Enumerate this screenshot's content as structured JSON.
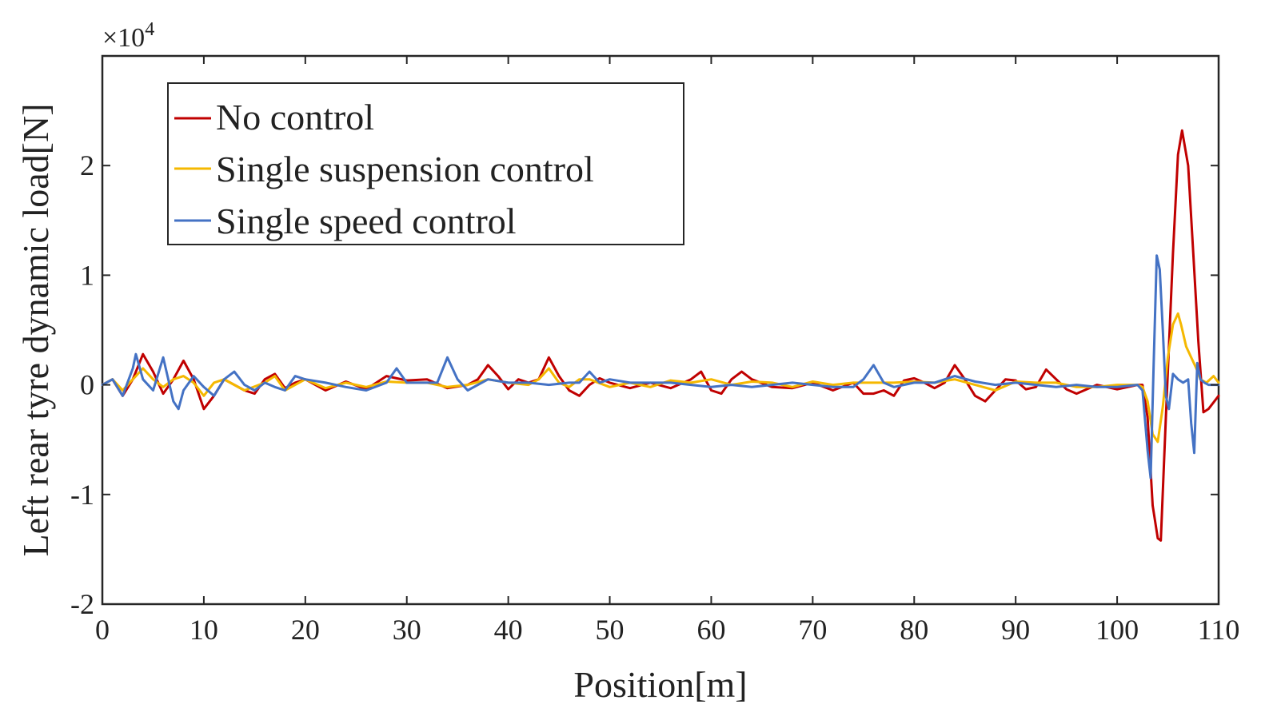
{
  "chart_data": {
    "type": "line",
    "title": "",
    "xlabel": "Position[m]",
    "ylabel": "Left rear tyre dynamic load[N]",
    "y_multiplier_base": "×10",
    "y_multiplier_exp": "4",
    "xlim": [
      0,
      110
    ],
    "ylim": [
      -2,
      3
    ],
    "x_ticks": [
      0,
      10,
      20,
      30,
      40,
      50,
      60,
      70,
      80,
      90,
      100,
      110
    ],
    "x_tick_labels": [
      "0",
      "10",
      "20",
      "30",
      "40",
      "50",
      "60",
      "70",
      "80",
      "90",
      "100",
      "110"
    ],
    "y_ticks": [
      -2,
      -1,
      0,
      1,
      2
    ],
    "y_tick_labels": [
      "-2",
      "-1",
      "0",
      "1",
      "2"
    ],
    "grid": false,
    "legend_position": "top-left",
    "series": [
      {
        "name": "No control",
        "color": "#c00000",
        "x": [
          0,
          1,
          2,
          3,
          4,
          5,
          6,
          7,
          8,
          9,
          10,
          11,
          12,
          13,
          14,
          15,
          16,
          17,
          18,
          19,
          20,
          22,
          24,
          26,
          28,
          30,
          32,
          34,
          36,
          37,
          38,
          39,
          40,
          41,
          42,
          43,
          44,
          45,
          46,
          47,
          48,
          49,
          50,
          52,
          54,
          56,
          58,
          59,
          60,
          61,
          62,
          63,
          64,
          66,
          68,
          70,
          72,
          74,
          75,
          76,
          77,
          78,
          79,
          80,
          81,
          82,
          83,
          84,
          85,
          86,
          87,
          88,
          89,
          90,
          91,
          92,
          93,
          94,
          95,
          96,
          98,
          100,
          102,
          102.5,
          103,
          103.5,
          104,
          104.3,
          104.8,
          105.5,
          106,
          106.4,
          107,
          107.5,
          108,
          108.5,
          109,
          110
        ],
        "y": [
          0,
          0.05,
          -0.1,
          0.05,
          0.28,
          0.12,
          -0.08,
          0.05,
          0.22,
          0.05,
          -0.22,
          -0.1,
          0.05,
          0,
          -0.05,
          -0.08,
          0.05,
          0.1,
          -0.03,
          0.02,
          0.05,
          -0.05,
          0.03,
          -0.04,
          0.08,
          0.04,
          0.05,
          -0.03,
          0,
          0.05,
          0.18,
          0.08,
          -0.04,
          0.05,
          0.02,
          0.05,
          0.25,
          0.08,
          -0.05,
          -0.1,
          0,
          0.06,
          0.02,
          -0.03,
          0.02,
          -0.03,
          0.05,
          0.12,
          -0.05,
          -0.08,
          0.05,
          0.12,
          0.05,
          -0.02,
          -0.03,
          0.02,
          -0.05,
          0.02,
          -0.08,
          -0.08,
          -0.05,
          -0.1,
          0.04,
          0.06,
          0.02,
          -0.03,
          0.02,
          0.18,
          0.05,
          -0.1,
          -0.15,
          -0.05,
          0.05,
          0.04,
          -0.04,
          -0.02,
          0.14,
          0.05,
          -0.04,
          -0.08,
          0,
          -0.04,
          0,
          0,
          -0.3,
          -1.1,
          -1.4,
          -1.42,
          -0.3,
          1.2,
          2.1,
          2.32,
          2.0,
          1.2,
          0.4,
          -0.25,
          -0.22,
          -0.1
        ]
      },
      {
        "name": "Single suspension control",
        "color": "#f5b800",
        "x": [
          0,
          1,
          2,
          3,
          4,
          5,
          6,
          7,
          8,
          9,
          10,
          11,
          12,
          14,
          16,
          17,
          18,
          20,
          22,
          24,
          26,
          28,
          30,
          32,
          34,
          36,
          38,
          40,
          42,
          43,
          44,
          45,
          46,
          47,
          48,
          50,
          52,
          54,
          56,
          58,
          60,
          62,
          64,
          66,
          68,
          70,
          72,
          74,
          76,
          78,
          80,
          82,
          84,
          86,
          88,
          90,
          92,
          94,
          96,
          98,
          100,
          102,
          102.5,
          103,
          103.5,
          104,
          104.5,
          105,
          105.5,
          106,
          106.3,
          106.8,
          107.3,
          107.8,
          108.2,
          108.8,
          109.5,
          110
        ],
        "y": [
          0,
          0.05,
          -0.05,
          0.05,
          0.15,
          0.05,
          -0.02,
          0.05,
          0.08,
          0.02,
          -0.1,
          0.02,
          0.05,
          -0.05,
          0.02,
          0.08,
          -0.05,
          0.05,
          -0.03,
          0.02,
          -0.02,
          0.03,
          0.02,
          0.02,
          -0.02,
          0,
          0.05,
          0.02,
          0,
          0.05,
          0.15,
          0.02,
          -0.02,
          0.05,
          0.05,
          -0.02,
          0.02,
          -0.02,
          0.04,
          0.02,
          0.05,
          0,
          0.03,
          0.02,
          -0.02,
          0.03,
          0,
          0.02,
          0.02,
          0.02,
          0.03,
          0.02,
          0.05,
          0,
          -0.05,
          0.03,
          0.02,
          0.02,
          -0.02,
          -0.02,
          0,
          0,
          -0.02,
          -0.15,
          -0.45,
          -0.52,
          -0.2,
          0.25,
          0.55,
          0.65,
          0.55,
          0.35,
          0.25,
          0.15,
          0.05,
          0.02,
          0.08,
          0.02
        ]
      },
      {
        "name": "Single speed control",
        "color": "#4472c4",
        "x": [
          0,
          1,
          2,
          3,
          3.3,
          4,
          5,
          6,
          7,
          7.5,
          8,
          9,
          10,
          11,
          12,
          13,
          14,
          15,
          16,
          17,
          18,
          19,
          20,
          22,
          24,
          26,
          28,
          29,
          30,
          32,
          33,
          34,
          35,
          36,
          38,
          40,
          42,
          44,
          46,
          47,
          48,
          49,
          50,
          52,
          54,
          56,
          58,
          60,
          62,
          64,
          66,
          68,
          70,
          72,
          74,
          75,
          76,
          77,
          78,
          80,
          82,
          84,
          86,
          88,
          90,
          92,
          94,
          96,
          98,
          100,
          102,
          102.5,
          103,
          103.3,
          103.6,
          103.9,
          104.2,
          104.5,
          104.8,
          105.1,
          105.5,
          106,
          106.5,
          107,
          107.3,
          107.6,
          107.9,
          108.2,
          108.6,
          109,
          110
        ],
        "y": [
          0,
          0.05,
          -0.1,
          0.15,
          0.28,
          0.05,
          -0.05,
          0.25,
          -0.15,
          -0.22,
          -0.05,
          0.08,
          -0.02,
          -0.1,
          0.05,
          0.12,
          0,
          -0.05,
          0.02,
          -0.02,
          -0.05,
          0.08,
          0.05,
          0.02,
          -0.02,
          -0.05,
          0.02,
          0.15,
          0.02,
          0.02,
          0.02,
          0.25,
          0.05,
          -0.05,
          0.05,
          0.02,
          0.02,
          0,
          0.02,
          0.02,
          0.12,
          0.02,
          0.05,
          0.02,
          0.02,
          0.02,
          0,
          -0.02,
          0,
          -0.02,
          0,
          0.02,
          0,
          -0.02,
          -0.02,
          0.05,
          0.18,
          0.02,
          -0.02,
          0.02,
          0.02,
          0.08,
          0.03,
          0,
          0.02,
          0,
          -0.02,
          0,
          -0.02,
          -0.02,
          0,
          -0.05,
          -0.6,
          -0.85,
          0.2,
          1.18,
          1.05,
          0.5,
          -0.1,
          -0.22,
          0.1,
          0.05,
          0.02,
          0.05,
          -0.35,
          -0.62,
          0.2,
          0.05,
          0.02,
          0,
          0
        ]
      }
    ]
  }
}
